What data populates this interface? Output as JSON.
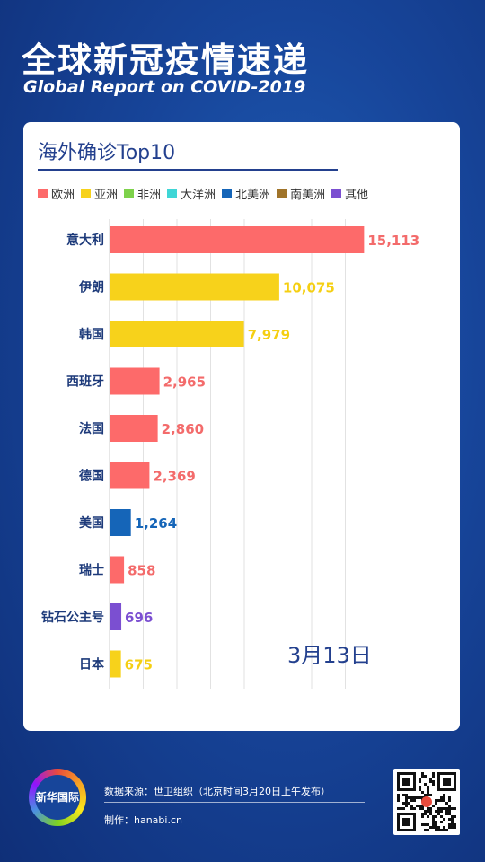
{
  "header": {
    "title": "全球新冠疫情速递",
    "subtitle": "Global Report on COVID-2019"
  },
  "card": {
    "title": "海外确诊Top10",
    "date": "3月13日"
  },
  "legend": [
    {
      "label": "欧洲",
      "color": "#fd6a6a"
    },
    {
      "label": "亚洲",
      "color": "#f7d21b"
    },
    {
      "label": "非洲",
      "color": "#7ed24b"
    },
    {
      "label": "大洋洲",
      "color": "#3fd6d6"
    },
    {
      "label": "北美洲",
      "color": "#1565b8"
    },
    {
      "label": "南美洲",
      "color": "#a0742a"
    },
    {
      "label": "其他",
      "color": "#7b4fd1"
    }
  ],
  "chart_data": {
    "type": "bar",
    "orientation": "horizontal",
    "title": "海外确诊Top10",
    "categories": [
      "意大利",
      "伊朗",
      "韩国",
      "西班牙",
      "法国",
      "德国",
      "美国",
      "瑞士",
      "钻石公主号",
      "日本"
    ],
    "values": [
      15113,
      10075,
      7979,
      2965,
      2860,
      2369,
      1264,
      858,
      696,
      675
    ],
    "labels": [
      "15,113",
      "10,075",
      "7,979",
      "2,965",
      "2,860",
      "2,369",
      "1,264",
      "858",
      "696",
      "675"
    ],
    "regions": [
      "欧洲",
      "亚洲",
      "亚洲",
      "欧洲",
      "欧洲",
      "欧洲",
      "北美洲",
      "欧洲",
      "其他",
      "亚洲"
    ],
    "colors": [
      "#fd6a6a",
      "#f7d21b",
      "#f7d21b",
      "#fd6a6a",
      "#fd6a6a",
      "#fd6a6a",
      "#1565b8",
      "#fd6a6a",
      "#7b4fd1",
      "#f7d21b"
    ],
    "label_colors": [
      "#f36b6b",
      "#f5cf12",
      "#f5cf12",
      "#f36b6b",
      "#f36b6b",
      "#f36b6b",
      "#1565b8",
      "#f36b6b",
      "#7b4fd1",
      "#f5cf12"
    ],
    "xlim": [
      0,
      16000
    ],
    "grid": true,
    "legend_position": "top"
  },
  "footer": {
    "logo_text": "新华国际",
    "source": "数据来源：世卫组织（北京时间3月20日上午发布）",
    "maker": "制作：hanabi.cn",
    "qr_icon": "qr-code-icon"
  }
}
